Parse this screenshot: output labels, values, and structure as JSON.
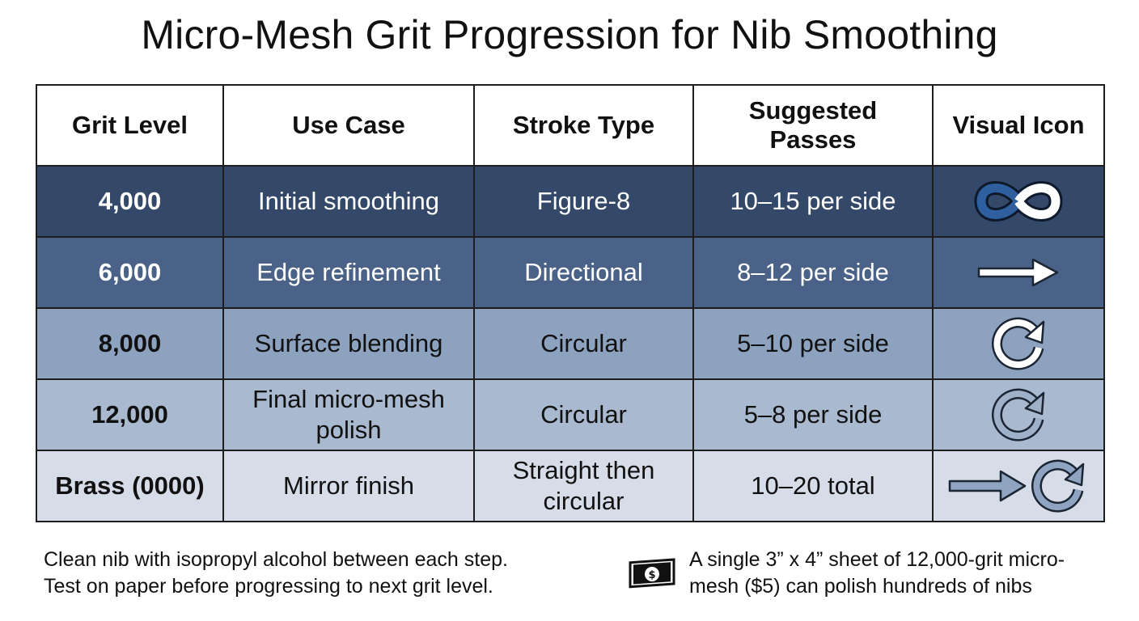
{
  "title": "Micro-Mesh Grit Progression for Nib Smoothing",
  "columns": [
    "Grit Level",
    "Use Case",
    "Stroke Type",
    "Suggested Passes",
    "Visual Icon"
  ],
  "rows": [
    {
      "grit": "4,000",
      "use": "Initial smoothing",
      "stroke": "Figure-8",
      "passes": "10–15 per side",
      "icon": "infinity-icon"
    },
    {
      "grit": "6,000",
      "use": "Edge refinement",
      "stroke": "Directional",
      "passes": "8–12 per side",
      "icon": "right-arrow-icon"
    },
    {
      "grit": "8,000",
      "use": "Surface blending",
      "stroke": "Circular",
      "passes": "5–10 per side",
      "icon": "circular-arrow-icon"
    },
    {
      "grit": "12,000",
      "use": "Final micro-mesh polish",
      "stroke": "Circular",
      "passes": "5–8 per side",
      "icon": "circular-arrow-icon"
    },
    {
      "grit": "Brass (0000)",
      "use": "Mirror finish",
      "stroke": "Straight then circular",
      "passes": "10–20 total",
      "icon": "arrow-then-circular-icon"
    }
  ],
  "notes": {
    "left_line1": "Clean nib with isopropyl alcohol between each step.",
    "left_line2": "Test on paper before progressing to next grit level.",
    "right_icon": "money-bill-icon",
    "right_line1": "A single 3” x 4” sheet of 12,000-grit micro-",
    "right_line2": "mesh ($5) can polish hundreds of nibs"
  },
  "colors": {
    "row_4000": "#34496a",
    "row_6000": "#4a6288",
    "row_8000": "#8da2bf",
    "row_12000": "#a9b9cf",
    "row_brass": "#d6dde8",
    "icon_blue": "#2f5f9e"
  }
}
